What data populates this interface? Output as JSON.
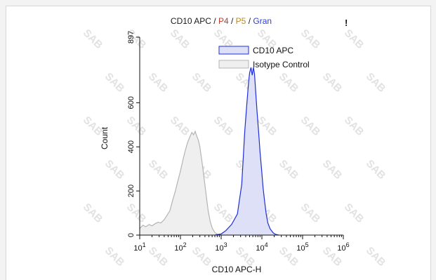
{
  "chart_data": {
    "type": "area",
    "title_parts": [
      {
        "text": "CD10 APC",
        "color": "#1a1a1a"
      },
      {
        "text": " / ",
        "color": "#1a1a1a"
      },
      {
        "text": "P4",
        "color": "#c0392b"
      },
      {
        "text": " / ",
        "color": "#1a1a1a"
      },
      {
        "text": "P5",
        "color": "#c08a1a"
      },
      {
        "text": " / ",
        "color": "#1a1a1a"
      },
      {
        "text": "Gran",
        "color": "#2b3fd6"
      }
    ],
    "corner_mark": "!",
    "xlabel": "CD10 APC-H",
    "ylabel": "Count",
    "x_scale": "log",
    "xlim": [
      10,
      1000000
    ],
    "ylim": [
      0,
      897
    ],
    "x_ticks": [
      {
        "value": 10,
        "base": "10",
        "exp": "1"
      },
      {
        "value": 100,
        "base": "10",
        "exp": "2"
      },
      {
        "value": 1000,
        "base": "10",
        "exp": "3"
      },
      {
        "value": 10000,
        "base": "10",
        "exp": "4"
      },
      {
        "value": 100000,
        "base": "10",
        "exp": "5"
      },
      {
        "value": 1000000,
        "base": "10",
        "exp": "6"
      }
    ],
    "y_ticks": [
      {
        "value": 0,
        "label": "0"
      },
      {
        "value": 200,
        "label": "200"
      },
      {
        "value": 400,
        "label": "400"
      },
      {
        "value": 600,
        "label": "600"
      },
      {
        "value": 897,
        "label": "897"
      }
    ],
    "watermark": "SAB",
    "legend": {
      "position": "top-right"
    },
    "series": [
      {
        "name": "CD10 APC",
        "stroke": "#1f2fd6",
        "fill": "#dde0f6",
        "points": [
          [
            700,
            0
          ],
          [
            1000,
            5
          ],
          [
            1300,
            20
          ],
          [
            1800,
            48
          ],
          [
            2500,
            95
          ],
          [
            3200,
            230
          ],
          [
            3800,
            470
          ],
          [
            4300,
            600
          ],
          [
            4700,
            690
          ],
          [
            5000,
            735
          ],
          [
            5400,
            760
          ],
          [
            5800,
            725
          ],
          [
            6200,
            760
          ],
          [
            6600,
            730
          ],
          [
            7100,
            640
          ],
          [
            7600,
            560
          ],
          [
            8300,
            470
          ],
          [
            9000,
            380
          ],
          [
            9800,
            300
          ],
          [
            10700,
            215
          ],
          [
            11700,
            150
          ],
          [
            12800,
            95
          ],
          [
            14000,
            55
          ],
          [
            16000,
            28
          ],
          [
            19000,
            10
          ],
          [
            22000,
            3
          ],
          [
            26000,
            0
          ]
        ]
      },
      {
        "name": "Isotype Control",
        "stroke": "#b4b4b4",
        "fill": "#efefef",
        "points": [
          [
            10,
            30
          ],
          [
            12,
            45
          ],
          [
            14,
            38
          ],
          [
            17,
            48
          ],
          [
            20,
            42
          ],
          [
            24,
            52
          ],
          [
            28,
            58
          ],
          [
            33,
            55
          ],
          [
            40,
            70
          ],
          [
            47,
            90
          ],
          [
            55,
            110
          ],
          [
            65,
            160
          ],
          [
            75,
            200
          ],
          [
            85,
            240
          ],
          [
            100,
            290
          ],
          [
            115,
            340
          ],
          [
            130,
            380
          ],
          [
            150,
            420
          ],
          [
            170,
            445
          ],
          [
            190,
            465
          ],
          [
            210,
            455
          ],
          [
            230,
            470
          ],
          [
            250,
            450
          ],
          [
            275,
            430
          ],
          [
            300,
            400
          ],
          [
            340,
            330
          ],
          [
            380,
            260
          ],
          [
            430,
            180
          ],
          [
            480,
            110
          ],
          [
            540,
            60
          ],
          [
            610,
            30
          ],
          [
            700,
            12
          ],
          [
            800,
            4
          ],
          [
            900,
            0
          ]
        ]
      }
    ]
  }
}
